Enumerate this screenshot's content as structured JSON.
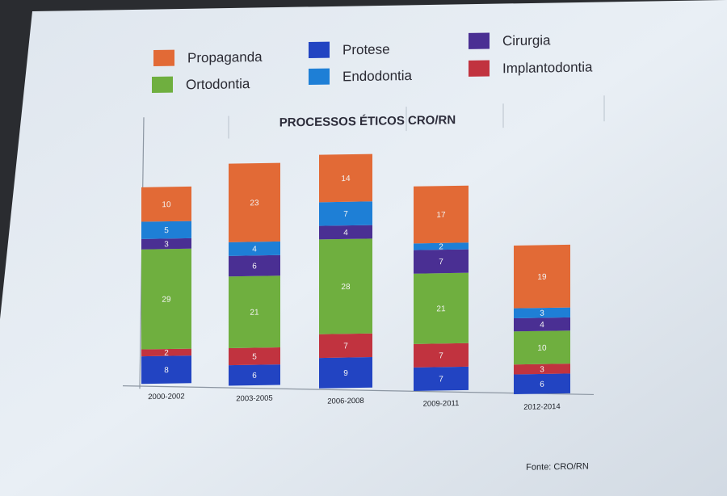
{
  "legend": [
    {
      "label": "Propaganda",
      "color": "#E26A36"
    },
    {
      "label": "Protese",
      "color": "#2244C2"
    },
    {
      "label": "Cirurgia",
      "color": "#4A2F93"
    },
    {
      "label": "Ortodontia",
      "color": "#6FAF3F"
    },
    {
      "label": "Endodontia",
      "color": "#1E7FD6"
    },
    {
      "label": "Implantodontia",
      "color": "#C1333F"
    }
  ],
  "source": "Fonte: CRO/RN",
  "chart_data": {
    "type": "bar",
    "stacked": true,
    "title": "PROCESSOS ÉTICOS CRO/RN",
    "categories": [
      "2000-2002",
      "2003-2005",
      "2006-2008",
      "2009-2011",
      "2012-2014"
    ],
    "series": [
      {
        "name": "Protese",
        "color": "#2244C2",
        "values": [
          8,
          6,
          9,
          7,
          6
        ]
      },
      {
        "name": "Implantodontia",
        "color": "#C1333F",
        "values": [
          2,
          5,
          7,
          7,
          3
        ]
      },
      {
        "name": "Ortodontia",
        "color": "#6FAF3F",
        "values": [
          29,
          21,
          28,
          21,
          10
        ]
      },
      {
        "name": "Cirurgia",
        "color": "#4A2F93",
        "values": [
          3,
          6,
          4,
          7,
          4
        ]
      },
      {
        "name": "Endodontia",
        "color": "#1E7FD6",
        "values": [
          5,
          4,
          7,
          2,
          3
        ]
      },
      {
        "name": "Propaganda",
        "color": "#E26A36",
        "values": [
          10,
          23,
          14,
          17,
          19
        ]
      }
    ],
    "legend_position": "top",
    "grid": false
  }
}
